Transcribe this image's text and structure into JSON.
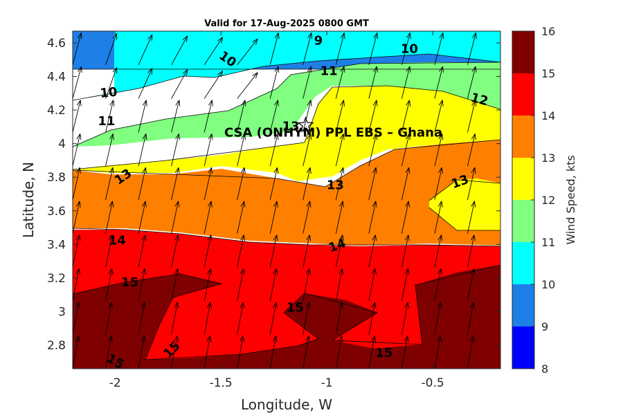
{
  "chart_data": {
    "type": "contour",
    "title": "Valid for 17-Aug-2025 0800 GMT",
    "xlabel": "Longitude, W",
    "ylabel": "Latitude, N",
    "xlim": [
      -2.2,
      -0.18
    ],
    "ylim": [
      2.66,
      4.67
    ],
    "xticks": [
      -2,
      -1.5,
      -1,
      -0.5
    ],
    "xtick_labels": [
      "-2",
      "-1.5",
      "-1",
      "-0.5"
    ],
    "yticks": [
      2.8,
      3,
      3.2,
      3.4,
      3.6,
      3.8,
      4,
      4.2,
      4.4,
      4.6
    ],
    "ytick_labels": [
      "2.8",
      "3",
      "3.2",
      "3.4",
      "3.6",
      "3.8",
      "4",
      "4.2",
      "4.4",
      "4.6"
    ],
    "colorbar": {
      "label": "Wind Speed, kts",
      "levels": [
        8,
        9,
        10,
        11,
        12,
        13,
        14,
        15,
        16
      ],
      "tick_labels": [
        "8",
        "9",
        "10",
        "11",
        "12",
        "13",
        "14",
        "15",
        "16"
      ],
      "colors": [
        "#0000ff",
        "#1e7fe6",
        "#00ffff",
        "#80ff80",
        "#ffff00",
        "#ff8000",
        "#ff0000",
        "#7f0000"
      ]
    },
    "contour_labels": [
      {
        "text": "9",
        "lon": -1.04,
        "lat": 4.61
      },
      {
        "text": "10",
        "lon": -2.03,
        "lat": 4.3
      },
      {
        "text": "10",
        "lon": -1.47,
        "lat": 4.5
      },
      {
        "text": "10",
        "lon": -0.61,
        "lat": 4.56
      },
      {
        "text": "11",
        "lon": -2.04,
        "lat": 4.13
      },
      {
        "text": "11",
        "lon": -0.99,
        "lat": 4.43
      },
      {
        "text": "12",
        "lon": -0.28,
        "lat": 4.26
      },
      {
        "text": "13",
        "lon": -1.17,
        "lat": 4.1
      },
      {
        "text": "13",
        "lon": -1.96,
        "lat": 3.8
      },
      {
        "text": "13",
        "lon": -0.96,
        "lat": 3.75
      },
      {
        "text": "13",
        "lon": -0.37,
        "lat": 3.77
      },
      {
        "text": "14",
        "lon": -1.99,
        "lat": 3.42
      },
      {
        "text": "14",
        "lon": -0.95,
        "lat": 3.39
      },
      {
        "text": "15",
        "lon": -1.93,
        "lat": 3.17
      },
      {
        "text": "15",
        "lon": -1.15,
        "lat": 3.02
      },
      {
        "text": "15",
        "lon": -1.73,
        "lat": 2.77
      },
      {
        "text": "15",
        "lon": -2.0,
        "lat": 2.7
      },
      {
        "text": "15",
        "lon": -0.73,
        "lat": 2.75
      }
    ],
    "annotation": {
      "text": "CSA (ONHYM) PPL EBS  – Ghana",
      "lon": -1.1,
      "lat": 4.05
    },
    "site_marker": {
      "symbol": "star",
      "lon": -1.1,
      "lat": 4.11
    },
    "vectors": "wind direction arrows, mostly pointing north-northeast"
  }
}
